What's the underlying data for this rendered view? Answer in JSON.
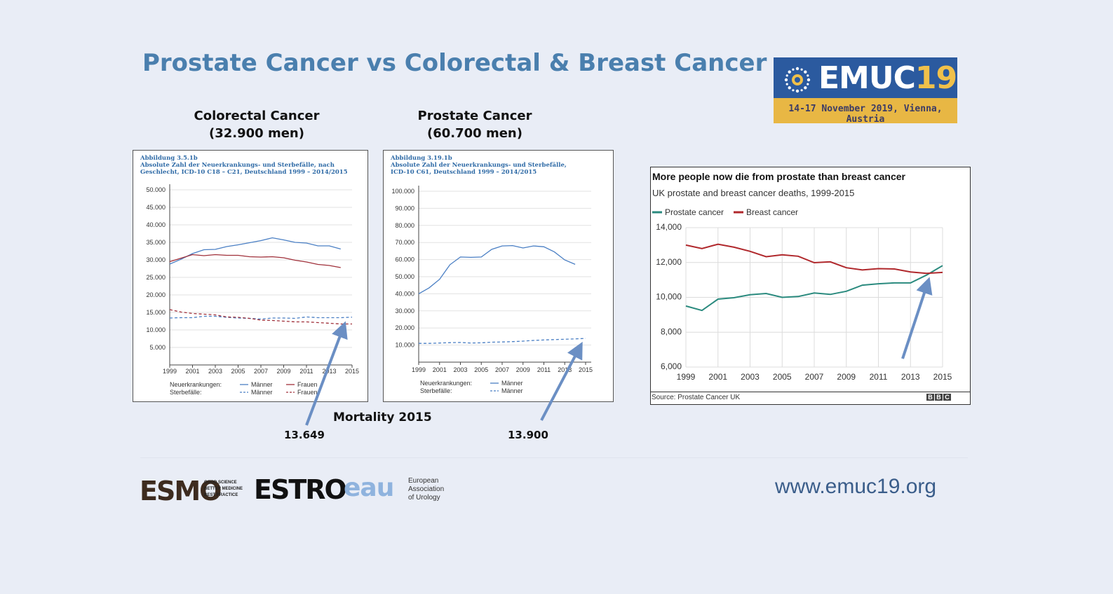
{
  "slide": {
    "title": "Prostate Cancer vs Colorectal & Breast Cancer",
    "mortality_label": "Mortality 2015",
    "website": "www.emuc19.org"
  },
  "logo": {
    "emuc_name": "EMUC",
    "emuc_year": "19",
    "emuc_date": "14-17 November 2019, Vienna, Austria",
    "partners": [
      {
        "name": "ESMO",
        "tagline": [
          "GOOD SCIENCE",
          "BETTER MEDICINE",
          "BEST PRACTICE"
        ]
      },
      {
        "name": "ESTRO"
      },
      {
        "name": "eau",
        "tagline": [
          "European",
          "Association",
          "of Urology"
        ]
      }
    ]
  },
  "colors": {
    "title": "#4a7fae",
    "arrow": "#6b8fc4",
    "de_blue": "#4a7fc4",
    "de_red": "#a0303a",
    "bbc_prostate": "#2a8a7e",
    "bbc_breast": "#b0282c"
  },
  "chart_data": [
    {
      "type": "line",
      "heading": "Colorectal Cancer",
      "subheading": "(32.900 men)",
      "caption": [
        "Abbildung 3.5.1b",
        "Absolute Zahl der Neuerkrankungs- und Sterbefälle, nach",
        "Geschlecht, ICD-10 C18 – C21, Deutschland 1999 – 2014/2015"
      ],
      "x": [
        1999,
        2000,
        2001,
        2002,
        2003,
        2004,
        2005,
        2006,
        2007,
        2008,
        2009,
        2010,
        2011,
        2012,
        2013,
        2014,
        2015
      ],
      "x_ticks": [
        "1999",
        "2001",
        "2003",
        "2005",
        "2007",
        "2009",
        "2011",
        "2013",
        "2015"
      ],
      "y_ticks": [
        "50.000",
        "45.000",
        "40.000",
        "35.000",
        "30.000",
        "25.000",
        "20.000",
        "15.000",
        "10.000",
        "5.000"
      ],
      "ylim": [
        0,
        50000
      ],
      "legend_rows": [
        {
          "label": "Neuerkrankungen:",
          "items": [
            "Männer",
            "Frauen"
          ]
        },
        {
          "label": "Sterbefälle:",
          "items": [
            "Männer",
            "Frauen"
          ]
        }
      ],
      "series": [
        {
          "name": "Neuerkrankungen Männer",
          "style": "solid",
          "color": "#4a7fc4",
          "values": [
            28800,
            30200,
            31800,
            32900,
            33000,
            33800,
            34300,
            34900,
            35500,
            36300,
            35700,
            35000,
            34800,
            34000,
            34000,
            33100,
            null
          ]
        },
        {
          "name": "Neuerkrankungen Frauen",
          "style": "solid",
          "color": "#a0303a",
          "values": [
            29500,
            30500,
            31500,
            31200,
            31500,
            31300,
            31300,
            30900,
            30800,
            30900,
            30600,
            29900,
            29400,
            28700,
            28400,
            27800,
            null
          ]
        },
        {
          "name": "Sterbefälle Männer",
          "style": "dashed",
          "color": "#4a7fc4",
          "values": [
            13400,
            13500,
            13500,
            13900,
            13900,
            13600,
            13400,
            13300,
            13100,
            13400,
            13400,
            13300,
            13700,
            13500,
            13500,
            13500,
            13649
          ]
        },
        {
          "name": "Sterbefälle Frauen",
          "style": "dashed",
          "color": "#a0303a",
          "values": [
            15800,
            15100,
            14700,
            14500,
            14300,
            13700,
            13600,
            13300,
            12800,
            12700,
            12500,
            12300,
            12300,
            12100,
            11900,
            11700,
            11700
          ]
        }
      ],
      "mortality_value": "13.649"
    },
    {
      "type": "line",
      "heading": "Prostate Cancer",
      "subheading": "(60.700 men)",
      "caption": [
        "Abbildung 3.19.1b",
        "Absolute Zahl der Neuerkrankungs- und Sterbefälle,",
        "ICD-10 C61, Deutschland 1999 – 2014/2015"
      ],
      "x": [
        1999,
        2000,
        2001,
        2002,
        2003,
        2004,
        2005,
        2006,
        2007,
        2008,
        2009,
        2010,
        2011,
        2012,
        2013,
        2014,
        2015
      ],
      "x_ticks": [
        "1999",
        "2001",
        "2003",
        "2005",
        "2007",
        "2009",
        "2011",
        "2013",
        "2015"
      ],
      "y_ticks": [
        "100.000",
        "90.000",
        "80.000",
        "70.000",
        "60.000",
        "50.000",
        "40.000",
        "30.000",
        "20.000",
        "10.000"
      ],
      "ylim": [
        0,
        100000
      ],
      "legend_rows": [
        {
          "label": "Neuerkrankungen:",
          "items": [
            "Männer"
          ]
        },
        {
          "label": "Sterbefälle:",
          "items": [
            "Männer"
          ]
        }
      ],
      "series": [
        {
          "name": "Neuerkrankungen Männer",
          "style": "solid",
          "color": "#4a7fc4",
          "values": [
            40000,
            43500,
            48500,
            57000,
            61500,
            61300,
            61500,
            66000,
            68000,
            68200,
            66800,
            68000,
            67500,
            64500,
            59800,
            57200,
            null
          ]
        },
        {
          "name": "Sterbefälle Männer",
          "style": "dashed",
          "color": "#4a7fc4",
          "values": [
            11000,
            11000,
            11200,
            11400,
            11500,
            11200,
            11300,
            11700,
            11800,
            12000,
            12300,
            12700,
            13000,
            13200,
            13400,
            13600,
            13900
          ]
        }
      ],
      "mortality_value": "13.900"
    },
    {
      "type": "line",
      "title": "More people now die from prostate than breast cancer",
      "subtitle": "UK prostate and breast cancer deaths, 1999-2015",
      "source": "Source: Prostate Cancer UK",
      "brand": [
        "B",
        "B",
        "C"
      ],
      "x": [
        1999,
        2000,
        2001,
        2002,
        2003,
        2004,
        2005,
        2006,
        2007,
        2008,
        2009,
        2010,
        2011,
        2012,
        2013,
        2014,
        2015
      ],
      "x_ticks": [
        "1999",
        "2001",
        "2003",
        "2005",
        "2007",
        "2009",
        "2011",
        "2013",
        "2015"
      ],
      "y_ticks": [
        "14,000",
        "12,000",
        "10,000",
        "8,000",
        "6,000"
      ],
      "ylim": [
        6000,
        14000
      ],
      "series": [
        {
          "name": "Prostate cancer",
          "color": "#2a8a7e",
          "values": [
            9500,
            9250,
            9900,
            9980,
            10150,
            10220,
            10000,
            10050,
            10250,
            10170,
            10350,
            10700,
            10780,
            10830,
            10830,
            11280,
            11820
          ]
        },
        {
          "name": "Breast cancer",
          "color": "#b0282c",
          "values": [
            13000,
            12800,
            13050,
            12880,
            12640,
            12330,
            12440,
            12360,
            11990,
            12040,
            11700,
            11570,
            11650,
            11630,
            11460,
            11380,
            11430
          ]
        }
      ]
    }
  ]
}
